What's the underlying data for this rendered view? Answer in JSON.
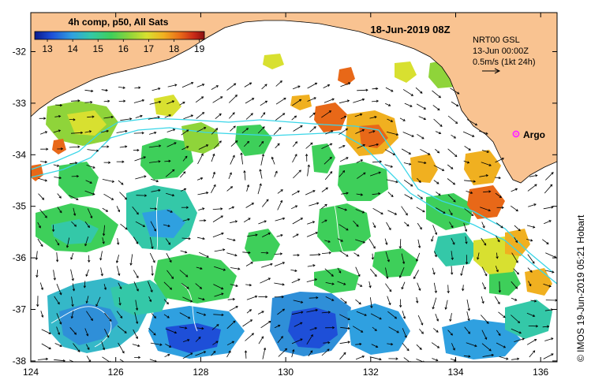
{
  "map": {
    "date_title": "18-Jun-2019 08Z",
    "colorbar": {
      "title": "4h comp, p50, All Sats",
      "ticks": [
        "13",
        "14",
        "15",
        "16",
        "17",
        "18",
        "19"
      ],
      "range": [
        12.5,
        19.2
      ],
      "colors": [
        "#0a1a8c",
        "#1e4fd8",
        "#2fa0e0",
        "#34c8a8",
        "#3ecf5a",
        "#8fd43a",
        "#d8e030",
        "#f0b020",
        "#e86818",
        "#c82818",
        "#8a1010"
      ]
    },
    "current_info": {
      "line1": "NRT00 GSL",
      "line2": "13-Jun 00:00Z",
      "line3": "0.5m/s (1kt 24h)"
    },
    "argo_label": "Argo",
    "credit": "© IMOS 19-Jun-2019 05:21 Hobart",
    "x_ticks": [
      "124",
      "126",
      "128",
      "130",
      "132",
      "134",
      "136"
    ],
    "y_ticks": [
      "-32",
      "-33",
      "-34",
      "-35",
      "-36",
      "-37",
      "-38"
    ],
    "land_color": "#f9c391",
    "track_color": "#3ad6e8",
    "argo_color": "#ff30ff"
  }
}
